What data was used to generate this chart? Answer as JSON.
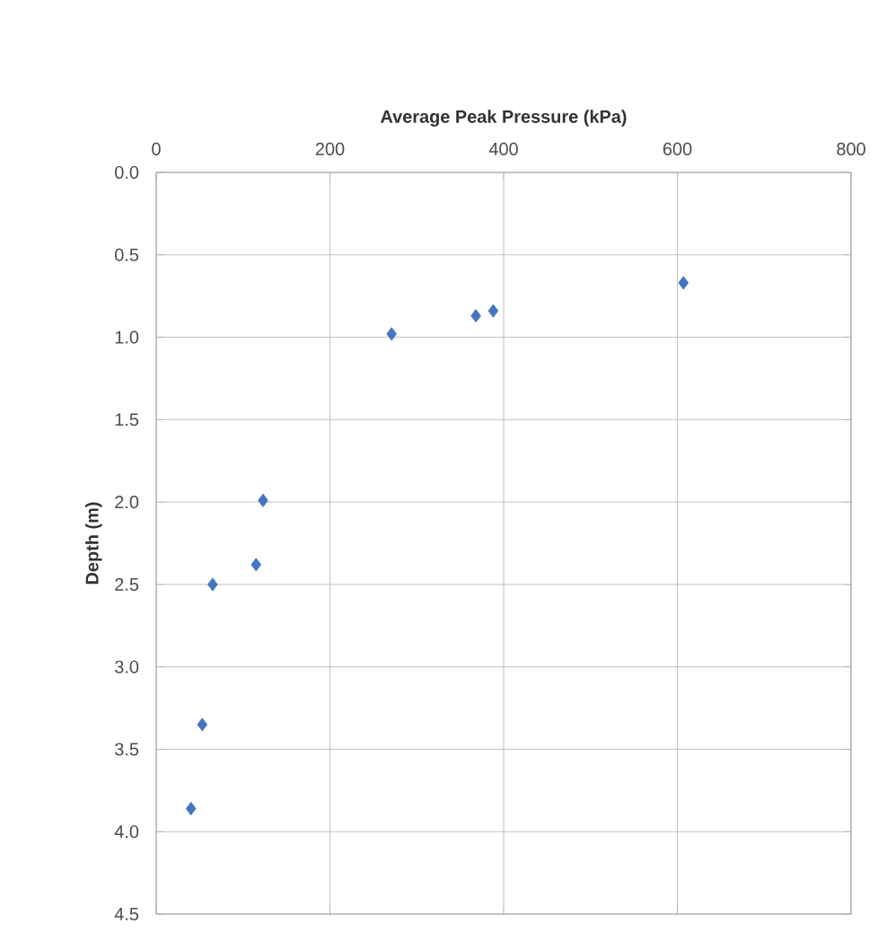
{
  "chart_data": {
    "type": "scatter",
    "xlabel": "Average Peak Pressure (kPa)",
    "ylabel": "Depth (m)",
    "x": [
      607,
      271,
      368,
      388,
      123,
      115,
      65,
      53,
      40
    ],
    "series": [
      {
        "color": "#4575c0",
        "values": [
          0.67,
          0.98,
          0.87,
          0.84,
          1.99,
          2.38,
          2.5,
          3.35,
          3.86
        ]
      }
    ],
    "xlim": [
      0,
      800
    ],
    "xticks": [
      0,
      200,
      400,
      600,
      800
    ],
    "ylim": [
      4.5,
      0
    ],
    "yticks": [
      {
        "value": 0,
        "label": "0.0"
      },
      {
        "value": 0.5,
        "label": "0.5"
      },
      {
        "value": 1,
        "label": "1.0"
      },
      {
        "value": 1.5,
        "label": "1.5"
      },
      {
        "value": 2,
        "label": "2.0"
      },
      {
        "value": 2.5,
        "label": "2.5"
      },
      {
        "value": 3,
        "label": "3.0"
      },
      {
        "value": 3.5,
        "label": "3.5"
      },
      {
        "value": 4,
        "label": "4.0"
      },
      {
        "value": 4.5,
        "label": "4.5"
      }
    ],
    "grid": true,
    "marker": "diamond"
  }
}
